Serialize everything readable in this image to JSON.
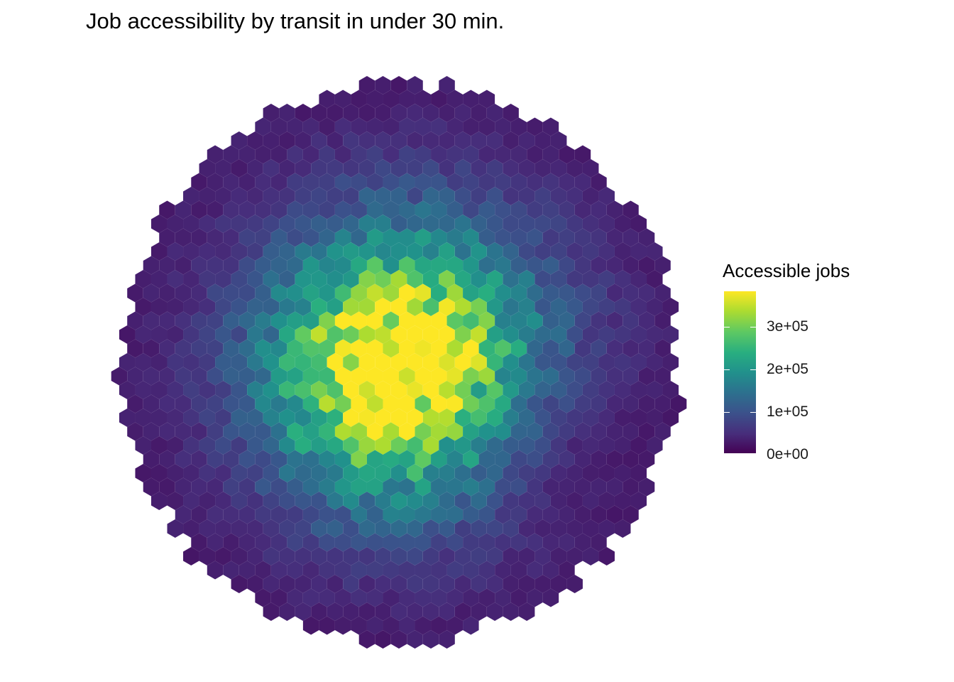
{
  "title": "Job accessibility by transit in under 30 min.",
  "legend": {
    "title": "Accessible jobs",
    "ticks": [
      "0e+00",
      "1e+05",
      "2e+05",
      "3e+05"
    ],
    "tick_values": [
      0,
      100000,
      200000,
      300000
    ],
    "max_value": 380000,
    "colors": [
      "#440154",
      "#472d7b",
      "#3b528b",
      "#2c728e",
      "#21918c",
      "#28ae80",
      "#5ec962",
      "#addc30",
      "#fde725"
    ]
  },
  "chart_data": {
    "type": "heatmap",
    "title": "Job accessibility by transit in under 30 min.",
    "description_of_values": "Hexagonal grid covering a circular region; fill shows number of accessible jobs. Highest (~380,000) near the center, decreasing outward to near 0 at the edges, with lower values toward the south-east.",
    "value_range": [
      0,
      380000
    ],
    "peak_value": 380000,
    "edge_value": 10000,
    "legend_title": "Accessible jobs"
  }
}
